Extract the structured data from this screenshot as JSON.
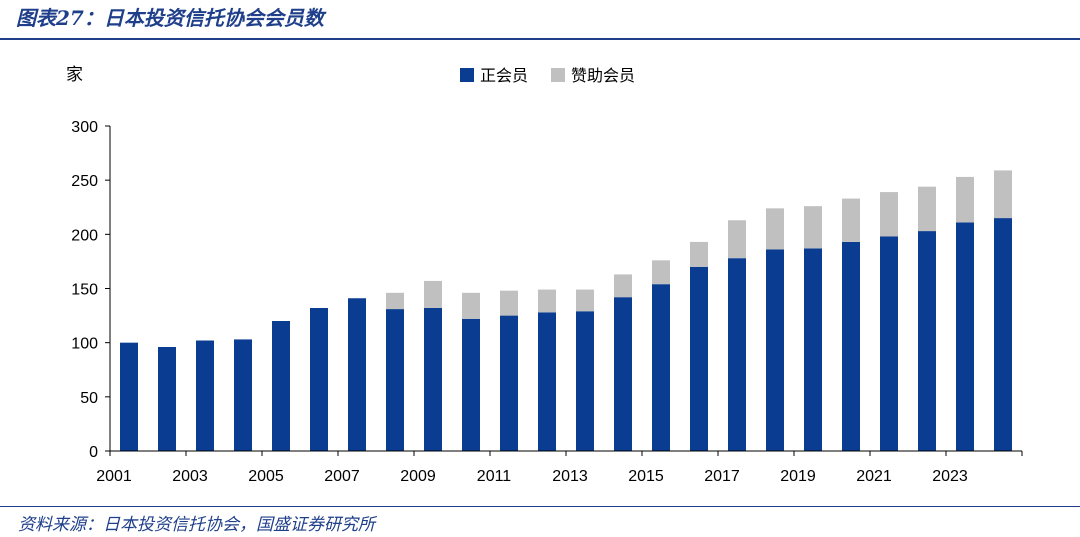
{
  "header": {
    "title": "图表27：日本投资信托协会会员数"
  },
  "footer": {
    "source": "资料来源：日本投资信托协会，国盛证券研究所"
  },
  "colors": {
    "brand": "#1f3f8a",
    "regular": "#0a3d91",
    "supporting": "#c0c0c0"
  },
  "chart_data": {
    "type": "bar",
    "stacked": true,
    "ylabel": "家",
    "ylim": [
      0,
      300
    ],
    "yticks": [
      0,
      50,
      100,
      150,
      200,
      250,
      300
    ],
    "legend_position": "top-center",
    "categories": [
      "2001",
      "2002",
      "2003",
      "2004",
      "2005",
      "2006",
      "2007",
      "2008",
      "2009",
      "2010",
      "2011",
      "2012",
      "2013",
      "2014",
      "2015",
      "2016",
      "2017",
      "2018",
      "2019",
      "2020",
      "2021",
      "2022",
      "2023",
      "2024"
    ],
    "xtick_labels": [
      "2001",
      "2003",
      "2005",
      "2007",
      "2009",
      "2011",
      "2013",
      "2015",
      "2017",
      "2019",
      "2021",
      "2023"
    ],
    "series": [
      {
        "name": "正会员",
        "values": [
          100,
          96,
          102,
          103,
          120,
          132,
          141,
          131,
          132,
          122,
          125,
          128,
          129,
          142,
          154,
          170,
          178,
          186,
          187,
          193,
          198,
          203,
          211,
          215
        ]
      },
      {
        "name": "赞助会员",
        "values": [
          0,
          0,
          0,
          0,
          0,
          0,
          0,
          15,
          25,
          24,
          23,
          21,
          20,
          21,
          22,
          23,
          35,
          38,
          39,
          40,
          41,
          41,
          42,
          44
        ]
      }
    ]
  }
}
